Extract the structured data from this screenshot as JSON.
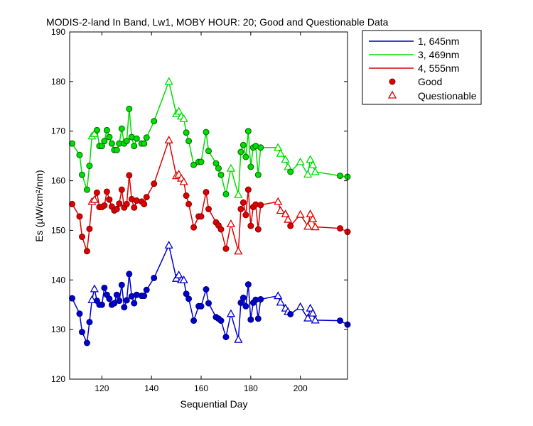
{
  "chart_data": {
    "type": "line",
    "title": "MODIS-2-land In Band,  Lw1, MOBY HOUR: 20;  Good and Questionable Data",
    "xlabel": "Sequential Day",
    "ylabel": "Es (µW/cm²/nm)",
    "xlim": [
      107,
      219
    ],
    "ylim": [
      120,
      190
    ],
    "xticks": [
      120,
      140,
      160,
      180,
      200
    ],
    "yticks": [
      120,
      130,
      140,
      150,
      160,
      170,
      180,
      190
    ],
    "grid": false,
    "legend_position": "top-right, outside plot",
    "legend": {
      "good_label": "Good",
      "questionable_label": "Questionable"
    },
    "x": [
      108,
      111,
      112,
      114,
      115,
      116,
      117,
      118,
      119,
      120,
      121,
      122,
      123,
      124,
      125,
      126,
      127,
      128,
      129,
      130,
      131,
      132,
      133,
      134,
      136,
      137,
      138,
      141,
      147,
      150,
      151,
      152,
      153,
      154,
      155,
      157,
      159,
      160,
      162,
      163,
      166,
      167,
      168,
      170,
      172,
      175,
      176,
      177,
      178,
      179,
      180,
      181,
      182,
      183,
      184,
      191,
      192,
      194,
      195,
      196,
      200,
      203,
      204,
      205,
      206,
      216,
      219
    ],
    "quality": [
      "G",
      "G",
      "G",
      "G",
      "G",
      "Q",
      "Q",
      "G",
      "G",
      "G",
      "G",
      "G",
      "G",
      "G",
      "G",
      "G",
      "G",
      "G",
      "G",
      "G",
      "G",
      "G",
      "G",
      "G",
      "G",
      "G",
      "G",
      "G",
      "Q",
      "Q",
      "Q",
      "Q",
      "Q",
      "G",
      "G",
      "G",
      "G",
      "G",
      "G",
      "G",
      "G",
      "G",
      "G",
      "G",
      "Q",
      "Q",
      "G",
      "G",
      "G",
      "G",
      "G",
      "G",
      "G",
      "G",
      "G",
      "Q",
      "Q",
      "Q",
      "Q",
      "G",
      "Q",
      "Q",
      "Q",
      "Q",
      "Q",
      "G",
      "G"
    ],
    "series": [
      {
        "name": "1, 645nm",
        "color": "#0000cc",
        "values": [
          136.3,
          133.2,
          129.5,
          127.3,
          131.5,
          136.0,
          138.2,
          135.8,
          135.0,
          135.0,
          138.4,
          137.0,
          136.2,
          135.0,
          135.3,
          137.0,
          135.8,
          139.0,
          134.5,
          135.9,
          141.2,
          136.7,
          135.3,
          137.0,
          136.8,
          136.8,
          138.0,
          140.4,
          147.0,
          140.3,
          141.0,
          140.0,
          140.0,
          137.2,
          136.2,
          131.8,
          134.7,
          134.7,
          138.1,
          135.3,
          132.5,
          132.2,
          131.8,
          128.5,
          133.2,
          128.0,
          135.4,
          136.4,
          134.7,
          139.1,
          132.0,
          135.4,
          136.0,
          132.2,
          136.1,
          136.8,
          135.5,
          134.3,
          133.6,
          133.1,
          134.6,
          132.3,
          134.3,
          133.3,
          131.9,
          131.8,
          131.0
        ]
      },
      {
        "name": "3, 469nm",
        "color": "#00dd00",
        "values": [
          167.5,
          165.2,
          161.2,
          158.2,
          163.0,
          169.0,
          169.5,
          170.2,
          167.0,
          167.0,
          168.0,
          170.2,
          168.8,
          167.5,
          166.2,
          166.2,
          167.5,
          170.5,
          167.5,
          168.0,
          174.5,
          168.8,
          167.0,
          168.5,
          167.5,
          167.5,
          168.7,
          172.0,
          180.0,
          173.5,
          174.0,
          173.0,
          172.5,
          169.7,
          168.0,
          163.2,
          163.8,
          163.8,
          169.8,
          166.0,
          163.5,
          162.5,
          161.2,
          157.3,
          162.5,
          157.2,
          165.8,
          167.2,
          164.8,
          170.0,
          162.8,
          166.7,
          167.0,
          161.2,
          166.7,
          166.7,
          165.5,
          164.3,
          162.8,
          161.8,
          163.8,
          161.3,
          164.3,
          163.2,
          161.8,
          161.0,
          160.8
        ]
      },
      {
        "name": "4, 555nm",
        "color": "#dd0000",
        "values": [
          155.3,
          152.8,
          148.7,
          145.8,
          150.3,
          155.8,
          156.2,
          157.6,
          154.7,
          154.7,
          155.0,
          157.8,
          156.2,
          154.8,
          154.0,
          154.3,
          155.4,
          158.2,
          154.6,
          155.3,
          161.1,
          156.3,
          154.6,
          156.0,
          155.8,
          155.3,
          156.7,
          159.4,
          168.2,
          161.0,
          161.3,
          160.5,
          159.8,
          157.0,
          155.3,
          150.6,
          152.8,
          152.8,
          157.7,
          154.3,
          151.6,
          151.0,
          150.2,
          146.3,
          151.3,
          145.8,
          154.3,
          155.6,
          153.1,
          158.2,
          150.9,
          154.7,
          155.2,
          150.2,
          155.1,
          155.8,
          154.0,
          153.3,
          152.2,
          150.9,
          153.2,
          150.8,
          153.3,
          152.3,
          150.7,
          150.4,
          149.7
        ]
      }
    ]
  }
}
